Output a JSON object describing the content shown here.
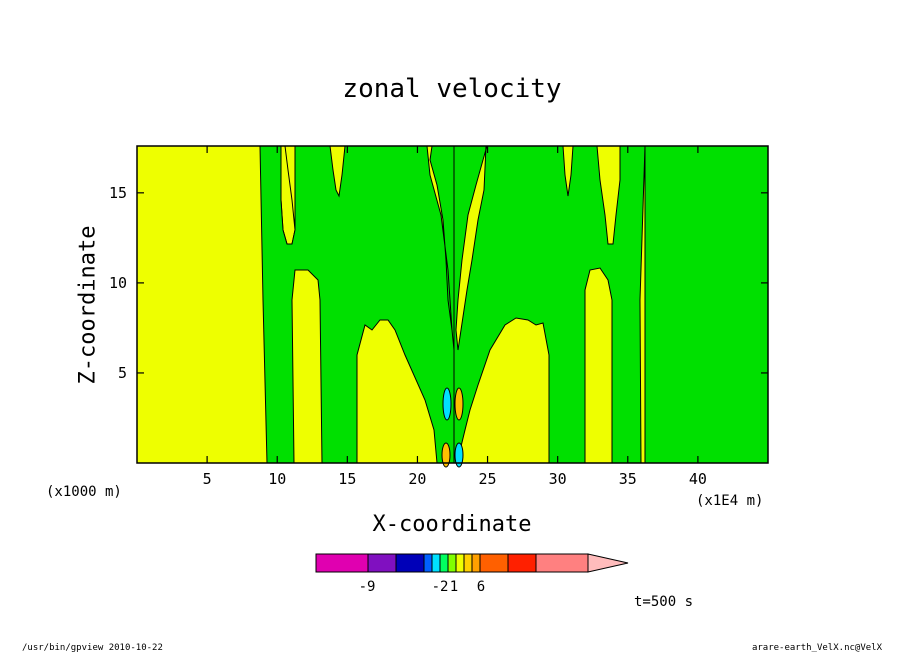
{
  "chart_data": {
    "type": "heatmap",
    "title": "zonal velocity",
    "xlabel": "X-coordinate",
    "ylabel": "Z-coordinate",
    "x_units": "(x1000 m)",
    "x_scale_note": "(x1E4 m)",
    "xlim": [
      0,
      45
    ],
    "ylim": [
      0,
      17.6
    ],
    "x_ticks": [
      5,
      10,
      15,
      20,
      25,
      30,
      35,
      40
    ],
    "y_ticks": [
      5,
      10,
      15
    ],
    "time_label": "t=500 s",
    "background_level_color": "#eeff00",
    "colorbar": {
      "colors": [
        "#e000b0",
        "#8010c0",
        "#0000b8",
        "#0060ff",
        "#00e0ff",
        "#00ff60",
        "#80ff00",
        "#eeff00",
        "#ffd000",
        "#ffa000",
        "#ff6000",
        "#ff2000",
        "#ff8080",
        "#ffbcbc"
      ],
      "labels": [
        "-9",
        "-2",
        "1",
        "6"
      ]
    },
    "regions": {
      "green_columns": [
        {
          "x": [
            9.2,
            11.3
          ],
          "z_top": 17.6
        },
        {
          "x": [
            13.3,
            15.9
          ],
          "z_top": 10.8
        },
        {
          "x": [
            22.4,
            22.9
          ],
          "z_top": 6.5
        },
        {
          "x": [
            29.2,
            31.9
          ],
          "z_top": 10.8
        },
        {
          "x": [
            34.0,
            36.1
          ],
          "z_top": 17.6
        },
        {
          "x": [
            36.1,
            45.0
          ],
          "z_top": 17.6
        }
      ]
    }
  },
  "footer": {
    "left": "/usr/bin/gpview  2010-10-22",
    "right": "arare-earth_VelX.nc@VelX"
  }
}
